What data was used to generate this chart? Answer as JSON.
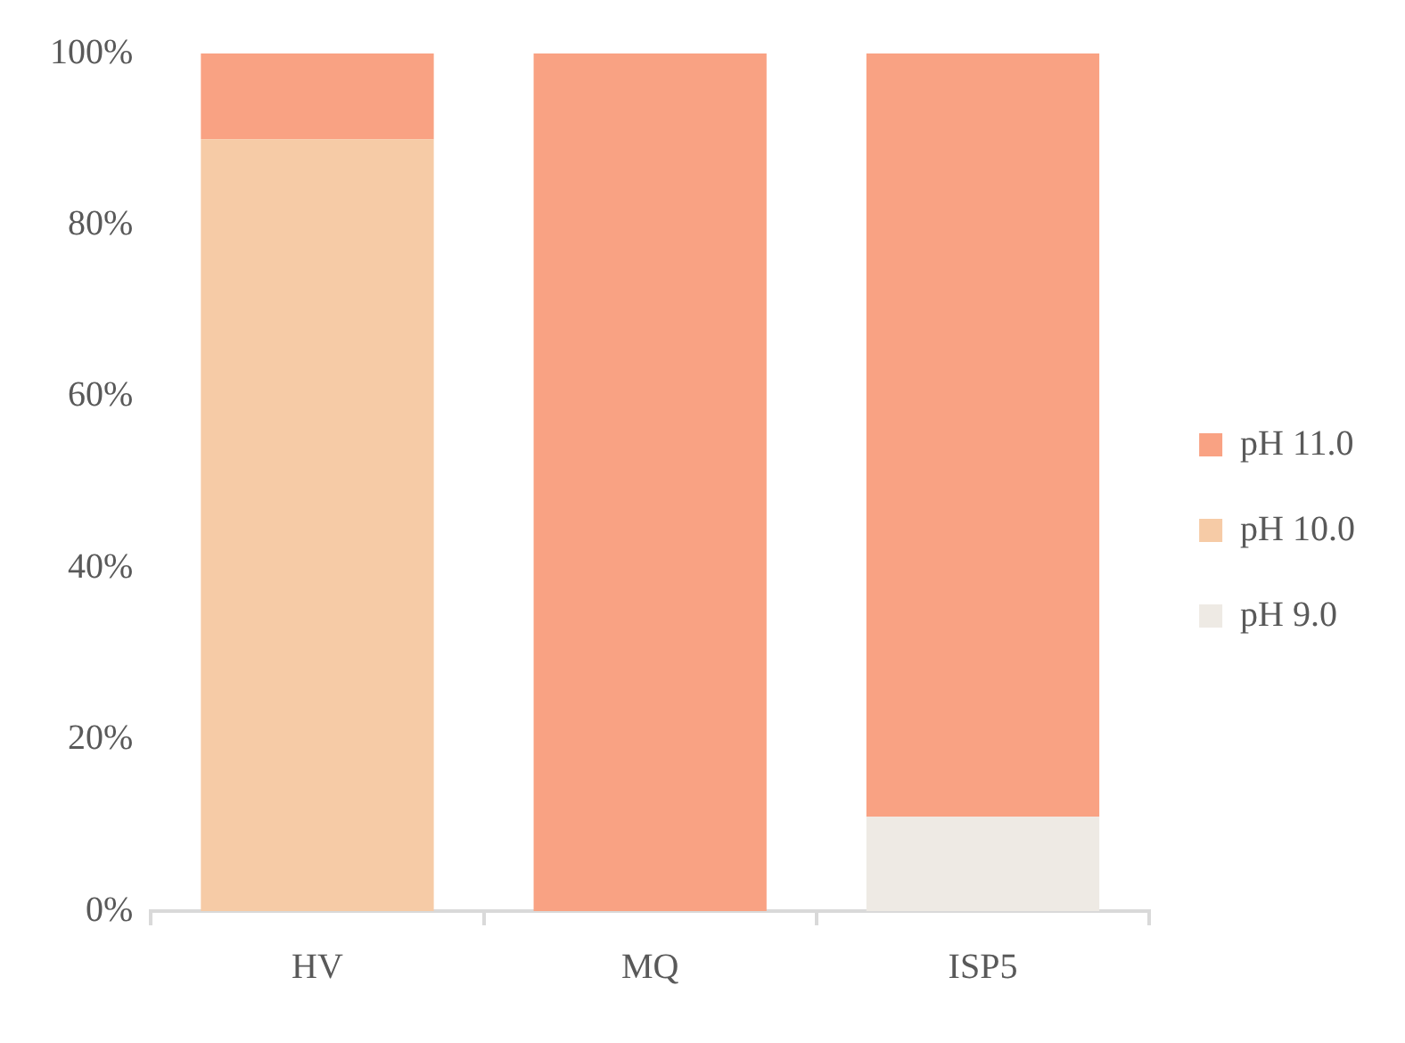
{
  "chart_data": {
    "type": "bar",
    "stacked": true,
    "categories": [
      "HV",
      "MQ",
      "ISP5"
    ],
    "series": [
      {
        "name": "pH 9.0",
        "color": "#eeeae4",
        "values": [
          0,
          0,
          11
        ]
      },
      {
        "name": "pH 10.0",
        "color": "#f6cba6",
        "values": [
          90,
          0,
          0
        ]
      },
      {
        "name": "pH 11.0",
        "color": "#f9a283",
        "values": [
          10,
          100,
          89
        ]
      }
    ],
    "ylim": [
      0,
      100
    ],
    "yticks": [
      {
        "value": 0,
        "label": "0%"
      },
      {
        "value": 20,
        "label": "20%"
      },
      {
        "value": 40,
        "label": "40%"
      },
      {
        "value": 60,
        "label": "60%"
      },
      {
        "value": 80,
        "label": "80%"
      },
      {
        "value": 100,
        "label": "100%"
      }
    ],
    "grid": false,
    "legend": "right"
  }
}
